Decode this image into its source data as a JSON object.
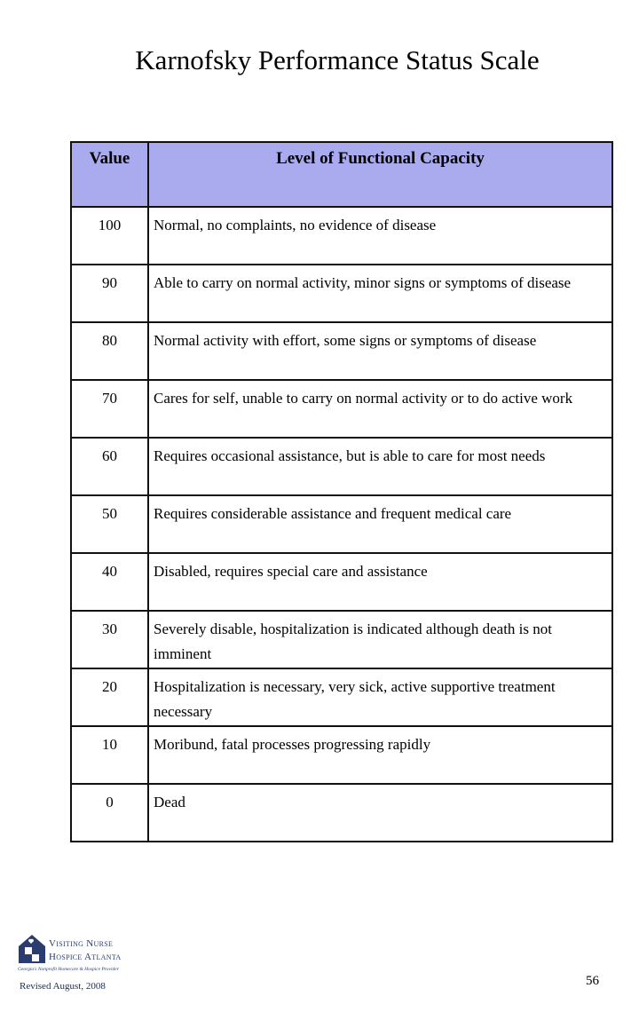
{
  "title": "Karnofsky Performance Status Scale",
  "table": {
    "headers": [
      "Value",
      "Level of Functional Capacity"
    ],
    "rows": [
      [
        "100",
        "Normal, no complaints, no evidence of disease"
      ],
      [
        "90",
        "Able to carry on normal activity, minor signs or symptoms of disease"
      ],
      [
        "80",
        "Normal activity with effort, some signs or symptoms of disease"
      ],
      [
        "70",
        "Cares for self, unable to carry on normal activity or to do active work"
      ],
      [
        "60",
        "Requires occasional assistance, but is able to care for most needs"
      ],
      [
        "50",
        "Requires considerable assistance and frequent medical care"
      ],
      [
        "40",
        "Disabled, requires special care and assistance"
      ],
      [
        "30",
        "Severely disable, hospitalization is indicated although death is not imminent"
      ],
      [
        "20",
        "Hospitalization is necessary, very sick, active supportive treatment necessary"
      ],
      [
        "10",
        "Moribund, fatal processes progressing rapidly"
      ],
      [
        "0",
        "Dead"
      ]
    ]
  },
  "logo": {
    "line1": "Visiting Nurse",
    "line2": "Hospice Atlanta",
    "tagline": "Georgia's Nonprofit Homecare & Hospice Provider"
  },
  "footer": {
    "revised": "Revised August, 2008",
    "page": "56"
  },
  "colors": {
    "header_bg": "#aaaaee",
    "logo": "#2a3d6e"
  }
}
